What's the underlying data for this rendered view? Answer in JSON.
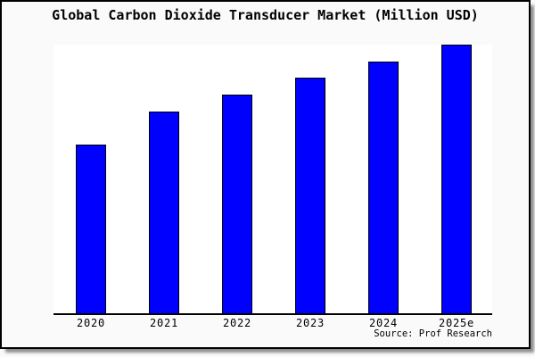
{
  "page": {
    "background_color": "#fafafa",
    "plot_background_color": "#ffffff",
    "frame_border_color": "#000000",
    "shadow_color": "#8f8f8f"
  },
  "chart_data": {
    "type": "bar",
    "title": "Global Carbon Dioxide Transducer Market (Million USD)",
    "source": "Source: Prof Research",
    "categories": [
      "2020",
      "2021",
      "2022",
      "2023",
      "2024",
      "2025e"
    ],
    "values_relative": [
      62.8,
      75.1,
      81.4,
      87.7,
      93.7,
      100.0
    ],
    "values_unit": "percent of 2025e bar height (y-axis has no visible scale labels)",
    "xlabel": "",
    "ylabel": "",
    "grid": false,
    "legend": false,
    "y_axis_labels_visible": false,
    "bar_color": "#0000ff",
    "bar_edge_color": "#000000",
    "axis_line_color": "#000000"
  }
}
